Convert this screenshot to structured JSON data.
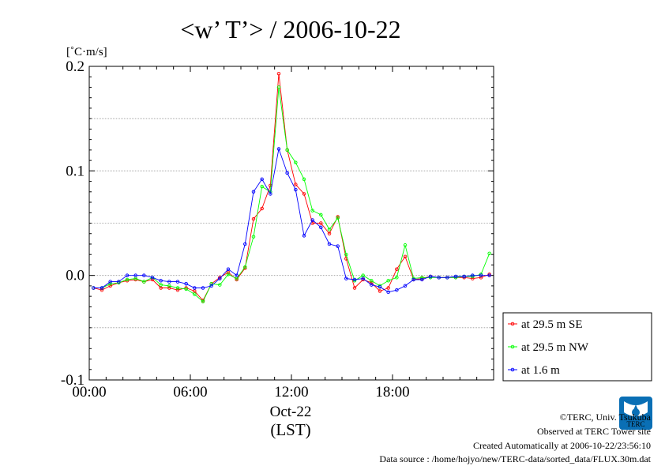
{
  "chart_data": {
    "type": "line",
    "title": "<w’ T’> / 2006-10-22",
    "ylabel": "[˚C·m/s]",
    "xlabel": "(LST)",
    "date_label": "Oct-22",
    "ylim": [
      -0.1,
      0.2
    ],
    "xlim": [
      0,
      24
    ],
    "y_ticks": [
      {
        "value": 0.2,
        "label": "0.2"
      },
      {
        "value": 0.1,
        "label": "0.1"
      },
      {
        "value": 0.0,
        "label": "0.0"
      },
      {
        "value": -0.1,
        "label": "-0.1"
      }
    ],
    "x_ticks": [
      {
        "value": 0,
        "label": "00:00"
      },
      {
        "value": 6,
        "label": "06:00"
      },
      {
        "value": 12,
        "label": "12:00"
      },
      {
        "value": 18,
        "label": "18:00"
      }
    ],
    "grid": "horizontal dotted at 0.05 intervals",
    "legend_position": "bottom-right outside",
    "x": [
      0.25,
      0.75,
      1.25,
      1.75,
      2.25,
      2.75,
      3.25,
      3.75,
      4.25,
      4.75,
      5.25,
      5.75,
      6.25,
      6.75,
      7.25,
      7.75,
      8.25,
      8.75,
      9.25,
      9.75,
      10.25,
      10.75,
      11.25,
      11.75,
      12.25,
      12.75,
      13.25,
      13.75,
      14.25,
      14.75,
      15.25,
      15.75,
      16.25,
      16.75,
      17.25,
      17.75,
      18.25,
      18.75,
      19.25,
      19.75,
      20.25,
      20.75,
      21.25,
      21.75,
      22.25,
      22.75,
      23.25,
      23.75
    ],
    "series": [
      {
        "name": "at 29.5 m SE",
        "color": "#ff0000",
        "values": [
          -0.012,
          -0.014,
          -0.01,
          -0.007,
          -0.005,
          -0.004,
          -0.006,
          -0.004,
          -0.012,
          -0.012,
          -0.014,
          -0.012,
          -0.015,
          -0.024,
          -0.008,
          -0.002,
          0.003,
          -0.004,
          0.007,
          0.054,
          0.064,
          0.086,
          0.193,
          0.12,
          0.087,
          0.078,
          0.05,
          0.05,
          0.04,
          0.056,
          0.016,
          -0.012,
          -0.004,
          -0.007,
          -0.015,
          -0.012,
          0.006,
          0.018,
          -0.004,
          -0.003,
          -0.001,
          -0.002,
          -0.002,
          -0.002,
          -0.002,
          -0.003,
          -0.002,
          0.001
        ]
      },
      {
        "name": "at 29.5 m NW",
        "color": "#00ff00",
        "values": [
          -0.012,
          -0.012,
          -0.008,
          -0.007,
          -0.004,
          -0.003,
          -0.006,
          -0.002,
          -0.009,
          -0.01,
          -0.012,
          -0.013,
          -0.018,
          -0.025,
          -0.008,
          -0.009,
          0.001,
          -0.003,
          0.008,
          0.037,
          0.085,
          0.08,
          0.18,
          0.12,
          0.108,
          0.092,
          0.062,
          0.058,
          0.044,
          0.055,
          0.02,
          -0.005,
          0.0,
          -0.005,
          -0.01,
          -0.005,
          -0.002,
          0.029,
          -0.003,
          -0.002,
          -0.002,
          -0.002,
          -0.002,
          -0.002,
          -0.001,
          -0.001,
          0.001,
          0.021
        ]
      },
      {
        "name": "at 1.6 m",
        "color": "#0000ff",
        "values": [
          -0.012,
          -0.012,
          -0.006,
          -0.006,
          0.0,
          0.0,
          0.0,
          -0.002,
          -0.005,
          -0.006,
          -0.006,
          -0.008,
          -0.012,
          -0.012,
          -0.01,
          -0.003,
          0.006,
          0.0,
          0.03,
          0.08,
          0.092,
          0.078,
          0.121,
          0.098,
          0.082,
          0.038,
          0.053,
          0.046,
          0.03,
          0.028,
          -0.003,
          -0.004,
          -0.003,
          -0.009,
          -0.011,
          -0.016,
          -0.014,
          -0.01,
          -0.004,
          -0.004,
          -0.001,
          -0.002,
          -0.002,
          -0.001,
          -0.001,
          0.0,
          0.0,
          0.0
        ]
      }
    ]
  },
  "footer": {
    "copyright": "©TERC, Univ. Tsukuba",
    "observed": "Observed at TERC Tower site",
    "created": "Created Automatically at 2006-10-22/23:56:10",
    "source": "Data source : /home/hojyo/new/TERC-data/sorted_data/FLUX.30m.dat",
    "logo_text": "TERC"
  }
}
